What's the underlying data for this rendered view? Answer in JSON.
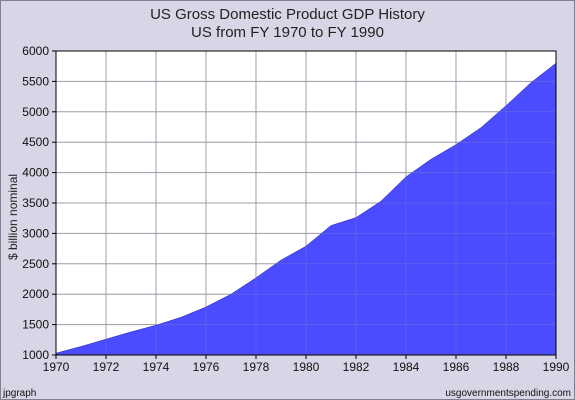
{
  "chart_data": {
    "type": "area",
    "title": "US Gross Domestic Product GDP History",
    "subtitle": "US from FY 1970 to FY 1990",
    "xlabel": "",
    "ylabel": "$ billion nominal",
    "xlim": [
      1970,
      1990
    ],
    "ylim": [
      1000,
      6000
    ],
    "x_ticks": [
      "1970",
      "1972",
      "1974",
      "1976",
      "1978",
      "1980",
      "1982",
      "1984",
      "1986",
      "1988",
      "1990"
    ],
    "y_ticks": [
      "1000",
      "1500",
      "2000",
      "2500",
      "3000",
      "3500",
      "4000",
      "4500",
      "5000",
      "5500",
      "6000"
    ],
    "grid": true,
    "series": [
      {
        "name": "",
        "x": [
          1970,
          1971,
          1972,
          1973,
          1974,
          1975,
          1976,
          1977,
          1978,
          1979,
          1980,
          1981,
          1982,
          1983,
          1984,
          1985,
          1986,
          1987,
          1988,
          1989,
          1990
        ],
        "values": [
          1030,
          1140,
          1260,
          1380,
          1490,
          1620,
          1790,
          2000,
          2270,
          2560,
          2790,
          3130,
          3260,
          3530,
          3930,
          4220,
          4460,
          4740,
          5100,
          5480,
          5800
        ]
      }
    ],
    "fill_color": "#4b4bff",
    "edge_color": "#2020c0"
  },
  "footer": {
    "left": "jpgraph",
    "right": "usgovernmentspending.com"
  }
}
